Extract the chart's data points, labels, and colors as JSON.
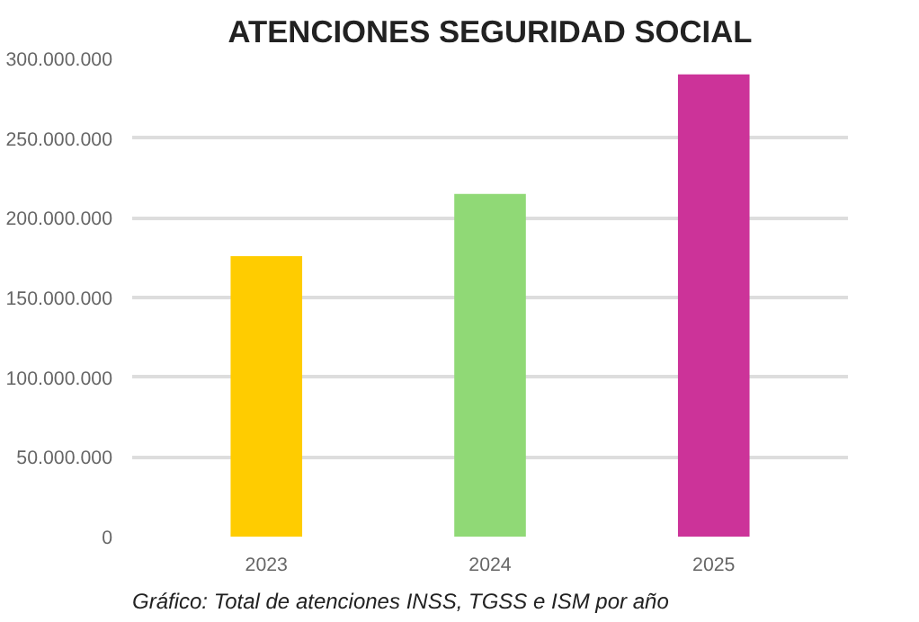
{
  "chart_data": {
    "type": "bar",
    "title": "ATENCIONES SEGURIDAD SOCIAL",
    "categories": [
      "2023",
      "2024",
      "2025"
    ],
    "values": [
      176000000,
      215000000,
      290000000
    ],
    "colors": [
      "#ffcc00",
      "#90d976",
      "#cc3399"
    ],
    "ylim": [
      0,
      300000000
    ],
    "yticks": [
      0,
      {
        "value": 50000000,
        "label": "50.000.000"
      },
      {
        "value": 100000000,
        "label": "100.000.000"
      },
      {
        "value": 150000000,
        "label": "150.000.000"
      },
      {
        "value": 200000000,
        "label": "200.000.000"
      },
      {
        "value": 250000000,
        "label": "250.000.000"
      },
      {
        "value": 300000000,
        "label": "300.000.000"
      }
    ],
    "grid": "y",
    "annotations": [
      "Gráfico: Total de atenciones INSS, TGSS e ISM por año"
    ]
  }
}
